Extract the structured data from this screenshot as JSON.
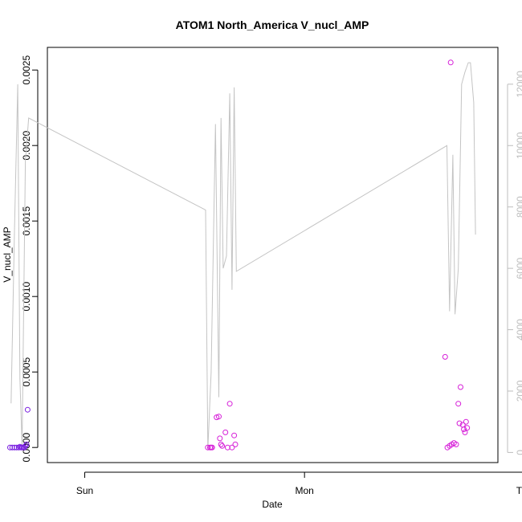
{
  "chart_data": {
    "type": "scatter",
    "title": "ATOM1 North_America V_nucl_AMP",
    "xlabel": "Date",
    "ylabel": "V_nucl_AMP",
    "x_unit": "day",
    "xlim": [
      -0.17,
      1.88
    ],
    "x_ticks": [
      {
        "value": 0,
        "label": "Sun"
      },
      {
        "value": 1,
        "label": "Mon"
      },
      {
        "value": 2,
        "label": "Tue"
      }
    ],
    "ylim": [
      -0.0001,
      0.00265
    ],
    "y_ticks": [
      {
        "value": 0.0,
        "label": "0.0000"
      },
      {
        "value": 0.0005,
        "label": "0.0005"
      },
      {
        "value": 0.001,
        "label": "0.0010"
      },
      {
        "value": 0.0015,
        "label": "0.0015"
      },
      {
        "value": 0.002,
        "label": "0.0020"
      },
      {
        "value": 0.0025,
        "label": "0.0025"
      }
    ],
    "y2lim": [
      -330,
      13200
    ],
    "y2_ticks": [
      {
        "value": 0,
        "label": "0"
      },
      {
        "value": 2000,
        "label": "2000"
      },
      {
        "value": 4000,
        "label": "4000"
      },
      {
        "value": 6000,
        "label": "6000"
      },
      {
        "value": 8000,
        "label": "8000"
      },
      {
        "value": 10000,
        "label": "10000"
      },
      {
        "value": 12000,
        "label": "12000"
      }
    ],
    "grid": false,
    "series": [
      {
        "kind": "points",
        "axis": "left",
        "color": "#7a1fe0",
        "points": [
          [
            -0.34,
            0.0
          ],
          [
            -0.33,
            0.0
          ],
          [
            -0.32,
            0.0
          ],
          [
            -0.31,
            0.0
          ],
          [
            -0.3,
            0.0
          ],
          [
            -0.295,
            5e-06
          ],
          [
            -0.29,
            0.0
          ],
          [
            -0.285,
            0.0
          ],
          [
            -0.28,
            0.0
          ],
          [
            -0.275,
            0.0
          ],
          [
            -0.27,
            1e-05
          ],
          [
            -0.265,
            2e-05
          ],
          [
            -0.26,
            0.00025
          ]
        ]
      },
      {
        "kind": "points",
        "axis": "left",
        "color": "#d61fd8",
        "points": [
          [
            0.56,
            0.0
          ],
          [
            0.57,
            0.0
          ],
          [
            0.575,
            0.0
          ],
          [
            0.58,
            0.0
          ],
          [
            0.6,
            0.0002
          ],
          [
            0.61,
            0.000205
          ],
          [
            0.615,
            6e-05
          ],
          [
            0.62,
            2e-05
          ],
          [
            0.625,
            1e-05
          ],
          [
            0.64,
            0.0001
          ],
          [
            0.65,
            0.0
          ],
          [
            0.66,
            0.00029
          ],
          [
            0.67,
            0.0
          ],
          [
            0.68,
            8e-05
          ],
          [
            0.685,
            2e-05
          ],
          [
            1.64,
            0.0006
          ],
          [
            1.65,
            0.0
          ],
          [
            1.66,
            1e-05
          ],
          [
            1.665,
            0.00255
          ],
          [
            1.67,
            2e-05
          ],
          [
            1.68,
            3e-05
          ],
          [
            1.69,
            2e-05
          ],
          [
            1.7,
            0.00029
          ],
          [
            1.705,
            0.00016
          ],
          [
            1.71,
            0.0004
          ],
          [
            1.72,
            0.00015
          ],
          [
            1.725,
            0.00012
          ],
          [
            1.73,
            0.0001
          ],
          [
            1.735,
            0.00017
          ],
          [
            1.74,
            0.00013
          ]
        ]
      },
      {
        "kind": "line",
        "axis": "right",
        "color": "#c4c4c4",
        "points": [
          [
            -0.335,
            1600
          ],
          [
            -0.32,
            7200
          ],
          [
            -0.305,
            12000
          ],
          [
            -0.295,
            2400
          ],
          [
            -0.285,
            200
          ],
          [
            -0.27,
            9500
          ],
          [
            -0.255,
            10900
          ],
          [
            0.55,
            7900
          ],
          [
            0.56,
            100
          ],
          [
            0.575,
            2600
          ],
          [
            0.595,
            10700
          ],
          [
            0.61,
            1800
          ],
          [
            0.62,
            10900
          ],
          [
            0.63,
            6000
          ],
          [
            0.645,
            6400
          ],
          [
            0.66,
            11700
          ],
          [
            0.67,
            5300
          ],
          [
            0.68,
            11900
          ],
          [
            0.69,
            5900
          ],
          [
            1.648,
            10000
          ],
          [
            1.66,
            4600
          ],
          [
            1.675,
            9700
          ],
          [
            1.685,
            4500
          ],
          [
            1.7,
            6000
          ],
          [
            1.715,
            12000
          ],
          [
            1.73,
            12400
          ],
          [
            1.745,
            12700
          ],
          [
            1.755,
            12700
          ],
          [
            1.77,
            11400
          ],
          [
            1.778,
            7100
          ]
        ]
      }
    ]
  }
}
